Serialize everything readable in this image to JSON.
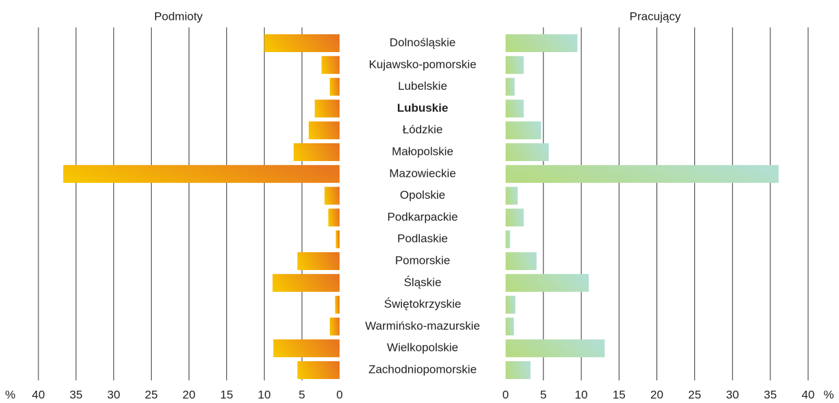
{
  "chart_data": {
    "type": "butterfly",
    "categories": [
      "Dolnośląskie",
      "Kujawsko-pomorskie",
      "Lubelskie",
      "Lubuskie",
      "Łódzkie",
      "Małopolskie",
      "Mazowieckie",
      "Opolskie",
      "Podkarpackie",
      "Podlaskie",
      "Pomorskie",
      "Śląskie",
      "Świętokrzyskie",
      "Warmińsko-mazurskie",
      "Wielkopolskie",
      "Zachodniopomorskie"
    ],
    "bold_category": "Lubuskie",
    "series": [
      {
        "name": "Podmioty",
        "color": [
          "#f7c400",
          "#e8771f"
        ],
        "values": [
          10.0,
          2.4,
          1.3,
          3.3,
          4.1,
          6.1,
          36.7,
          2.0,
          1.5,
          0.5,
          5.6,
          8.9,
          0.6,
          1.3,
          8.8,
          5.6
        ]
      },
      {
        "name": "Pracujący",
        "color": [
          "#b6db84",
          "#b2dfd2"
        ],
        "values": [
          9.5,
          2.4,
          1.2,
          2.4,
          4.7,
          5.7,
          36.1,
          1.6,
          2.4,
          0.6,
          4.1,
          11.0,
          1.3,
          1.1,
          13.1,
          3.3
        ]
      }
    ],
    "xlim": [
      0,
      40
    ],
    "xticks": [
      0,
      5,
      10,
      15,
      20,
      25,
      30,
      35,
      40
    ],
    "unit": "%",
    "grid": true
  }
}
